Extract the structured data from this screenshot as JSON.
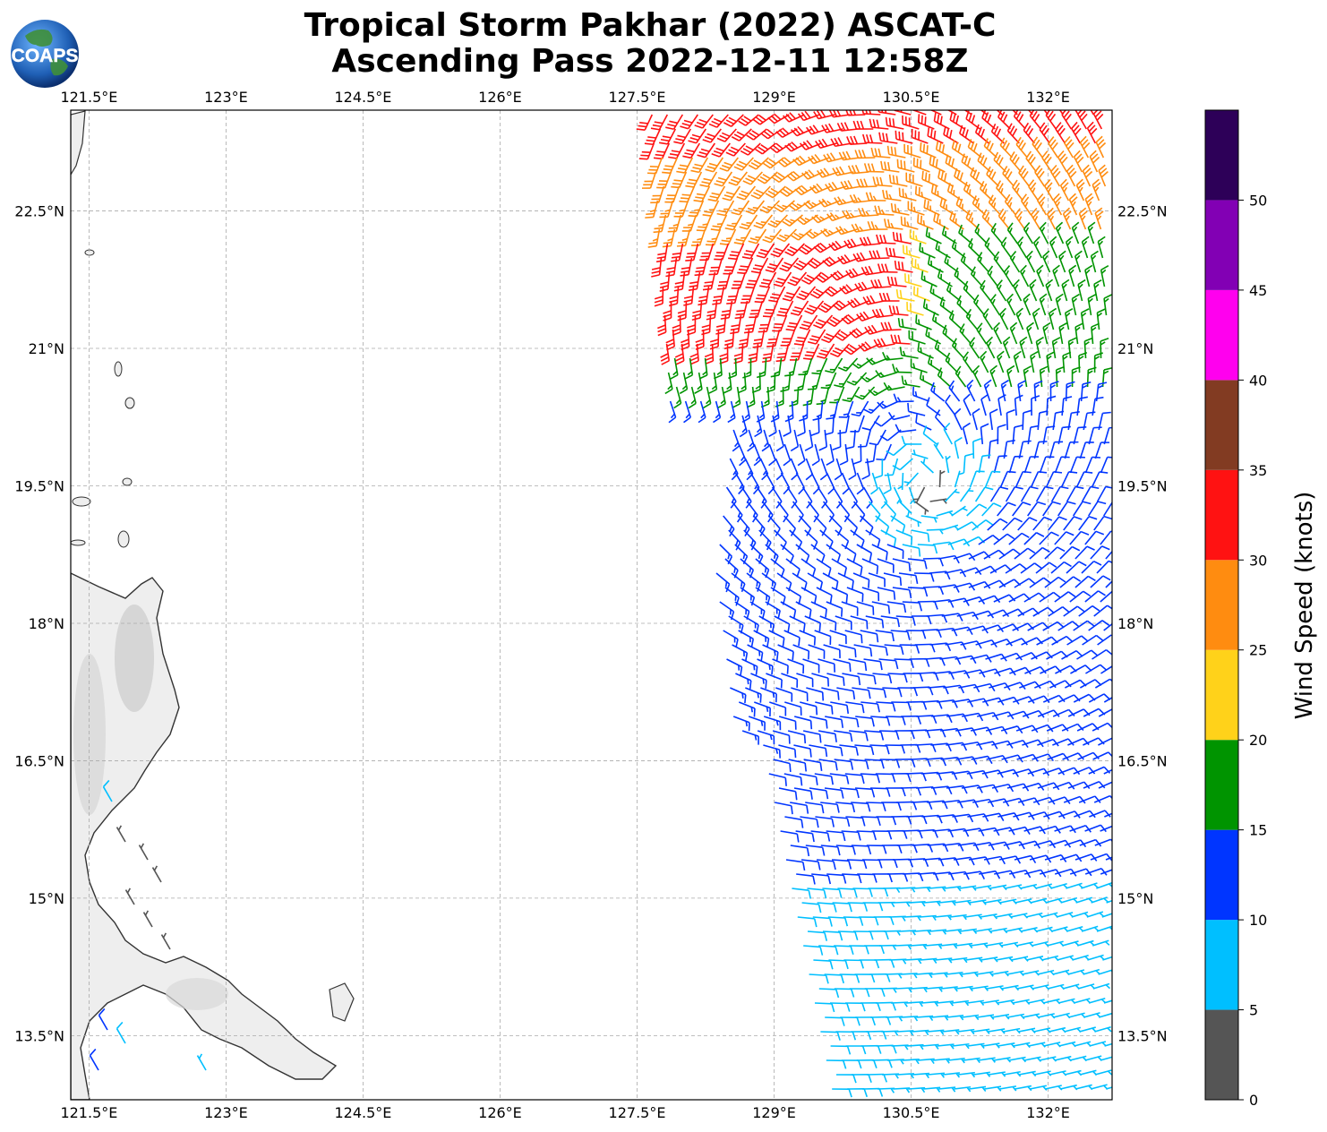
{
  "title": {
    "line1": "Tropical Storm Pakhar (2022) ASCAT-C",
    "line2": "Ascending Pass 2022-12-11 12:58Z"
  },
  "logo": {
    "text": "COAPS",
    "icon": "globe-logo-icon"
  },
  "map": {
    "lon_range": [
      121.3,
      132.7
    ],
    "lat_range": [
      12.8,
      23.6
    ],
    "lon_ticks": [
      121.5,
      123,
      124.5,
      126,
      127.5,
      129,
      130.5,
      132
    ],
    "lon_tick_labels": [
      "121.5°E",
      "123°E",
      "124.5°E",
      "126°E",
      "127.5°E",
      "129°E",
      "130.5°E",
      "132°E"
    ],
    "lat_ticks": [
      13.5,
      15,
      16.5,
      18,
      19.5,
      21,
      22.5
    ],
    "lat_tick_labels": [
      "13.5°N",
      "15°N",
      "16.5°N",
      "18°N",
      "19.5°N",
      "21°N",
      "22.5°N"
    ],
    "gridlines": true,
    "land_region": "Luzon / Philippines (west edge)",
    "storm_center_approx": {
      "lon": 130.7,
      "lat": 19.4
    }
  },
  "colorbar": {
    "label": "Wind Speed (knots)",
    "tick_values": [
      0,
      5,
      10,
      15,
      20,
      25,
      30,
      35,
      40,
      45,
      50
    ],
    "bins": [
      {
        "min": 0,
        "max": 5,
        "color": "#555555"
      },
      {
        "min": 5,
        "max": 10,
        "color": "#00bfff"
      },
      {
        "min": 10,
        "max": 15,
        "color": "#0035ff"
      },
      {
        "min": 15,
        "max": 20,
        "color": "#009400"
      },
      {
        "min": 20,
        "max": 25,
        "color": "#ffd21a"
      },
      {
        "min": 25,
        "max": 30,
        "color": "#ff8c10"
      },
      {
        "min": 30,
        "max": 35,
        "color": "#ff1212"
      },
      {
        "min": 35,
        "max": 40,
        "color": "#823b22"
      },
      {
        "min": 40,
        "max": 45,
        "color": "#ff00ee"
      },
      {
        "min": 45,
        "max": 50,
        "color": "#8200b4"
      },
      {
        "min": 50,
        "max": 55,
        "color": "#2d0058"
      }
    ]
  }
}
